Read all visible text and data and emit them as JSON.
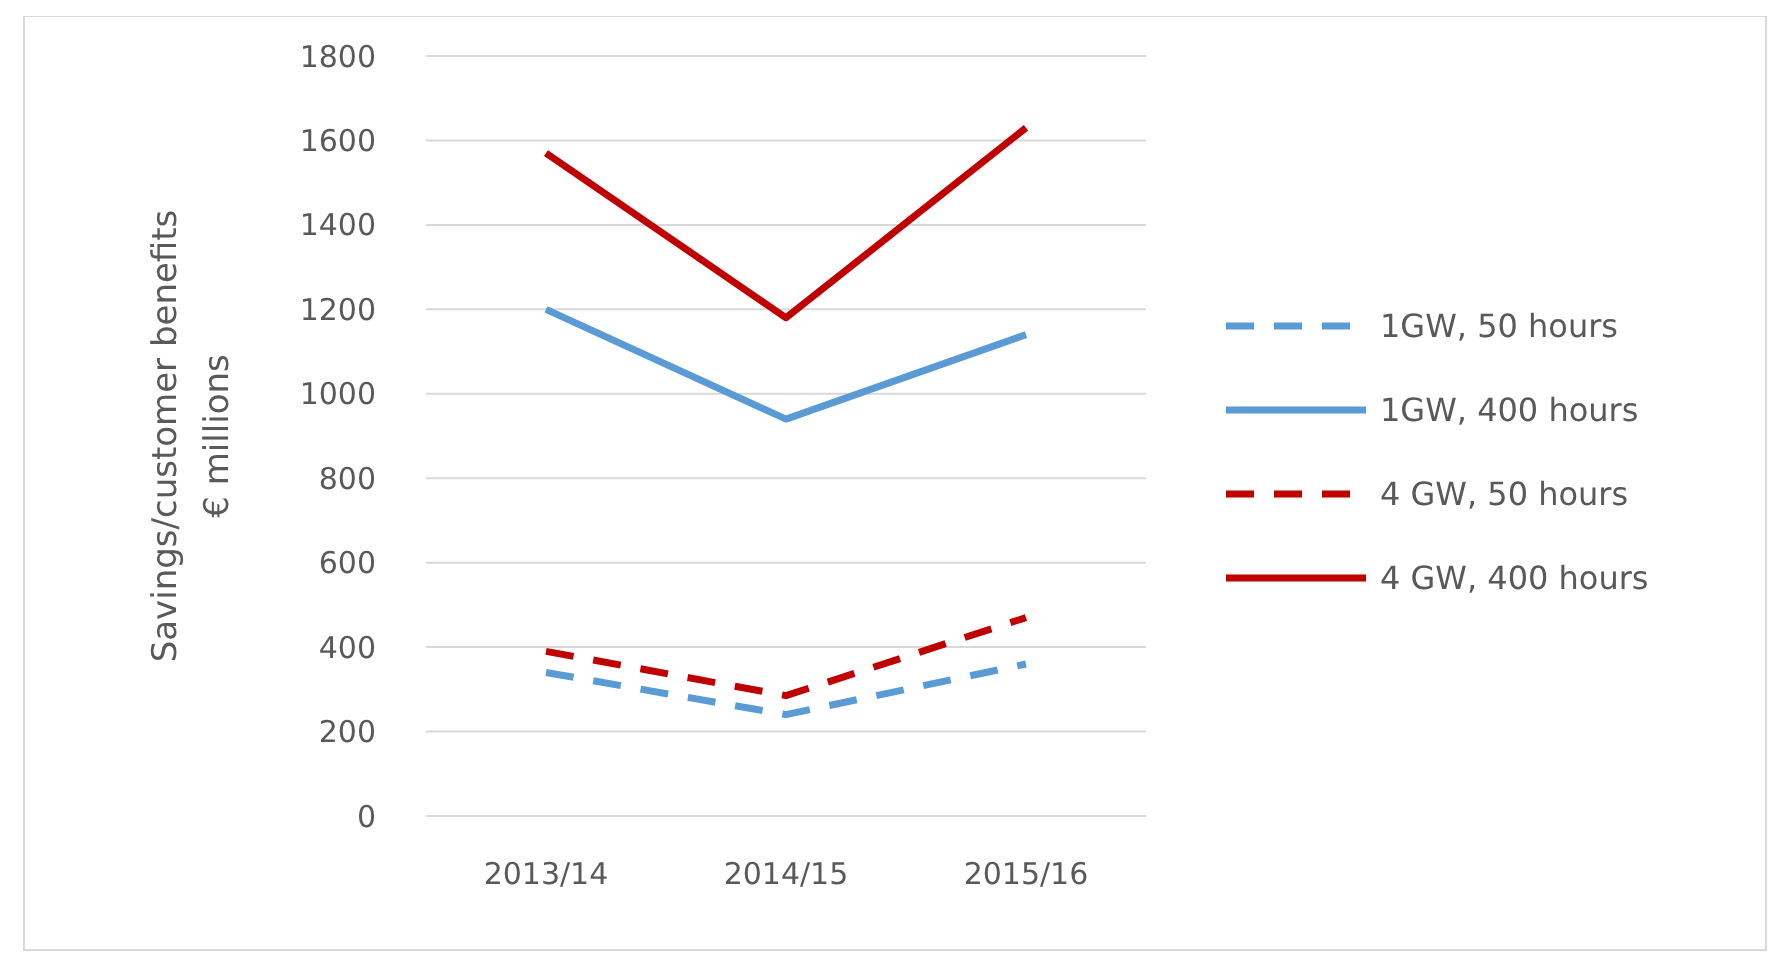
{
  "chart_data": {
    "type": "line",
    "ylabel": "Savings/customer benefits\n€ millions",
    "categories": [
      "2013/14",
      "2014/15",
      "2015/16"
    ],
    "series": [
      {
        "name": "1GW, 50 hours",
        "color": "#5b9bd5",
        "values": [
          340,
          240,
          360
        ],
        "line_style": "dashed"
      },
      {
        "name": "1GW, 400 hours",
        "color": "#5b9bd5",
        "values": [
          1200,
          940,
          1140
        ],
        "line_style": "solid"
      },
      {
        "name": "4 GW, 50 hours",
        "color": "#c00000",
        "values": [
          390,
          285,
          470
        ],
        "line_style": "dashed"
      },
      {
        "name": "4 GW, 400 hours",
        "color": "#c00000",
        "values": [
          1570,
          1180,
          1630
        ],
        "line_style": "solid"
      }
    ],
    "ylim": [
      0,
      1800
    ],
    "yticks": [
      0,
      200,
      400,
      600,
      800,
      1000,
      1200,
      1400,
      1600,
      1800
    ],
    "grid": "y",
    "legend": "right",
    "marker": "none"
  }
}
